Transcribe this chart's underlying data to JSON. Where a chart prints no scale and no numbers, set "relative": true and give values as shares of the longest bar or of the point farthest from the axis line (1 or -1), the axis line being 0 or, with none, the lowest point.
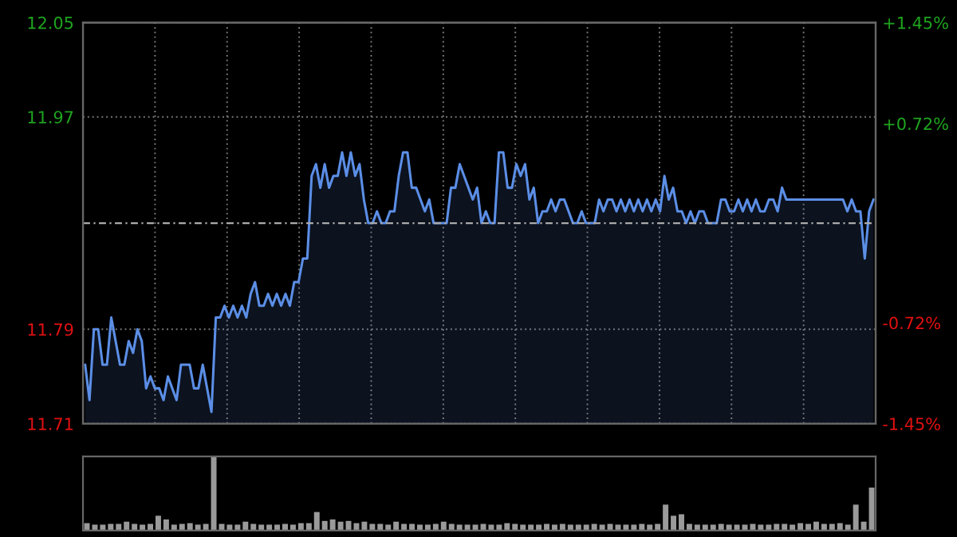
{
  "chart_data": [
    {
      "type": "area",
      "categories": [
        null,
        null,
        null,
        null,
        null,
        null,
        null,
        null,
        null,
        null,
        null,
        null,
        null,
        null,
        null,
        null,
        null,
        null,
        null,
        null,
        null,
        null,
        null,
        null,
        null,
        null,
        null,
        null,
        null,
        null,
        null,
        null,
        null,
        null,
        null,
        null,
        null,
        null,
        null,
        null,
        null,
        null,
        null,
        null,
        null,
        null,
        null,
        null,
        null,
        null,
        null,
        null,
        null,
        null,
        null,
        null,
        null,
        null,
        null,
        null,
        null,
        null,
        null,
        null,
        null,
        null,
        null,
        null,
        null,
        null,
        null,
        null,
        null,
        null,
        null,
        null,
        null,
        null,
        null,
        null,
        null,
        null,
        null,
        null,
        null,
        null,
        null,
        null,
        null,
        null,
        null,
        null,
        null,
        null,
        null,
        null,
        null,
        null,
        null,
        null,
        null,
        null,
        null,
        null,
        null,
        null,
        null,
        null,
        null,
        null,
        null,
        null,
        null,
        null,
        null,
        null,
        null,
        null,
        null,
        null,
        null,
        null,
        null,
        null,
        null,
        null,
        null,
        null,
        null,
        null,
        null,
        null,
        null,
        null,
        null,
        null,
        null,
        null,
        null,
        null,
        null,
        null,
        null,
        null,
        null,
        null,
        null,
        null,
        null,
        null,
        null,
        null,
        null,
        null,
        null,
        null,
        null,
        null,
        null,
        null,
        null,
        null,
        null,
        null,
        null,
        null,
        null,
        null,
        null,
        null,
        null,
        null,
        null,
        null,
        null,
        null,
        null,
        null,
        null,
        null,
        null,
        null
      ],
      "series": [
        {
          "color": "#5b8ee6",
          "values": [
            11.76,
            11.73,
            11.79,
            11.79,
            11.76,
            11.76,
            11.8,
            11.78,
            11.76,
            11.76,
            11.78,
            11.77,
            11.79,
            11.78,
            11.74,
            11.75,
            11.74,
            11.74,
            11.73,
            11.75,
            11.74,
            11.73,
            11.76,
            11.76,
            11.76,
            11.74,
            11.74,
            11.76,
            11.74,
            11.72,
            11.8,
            11.8,
            11.81,
            11.8,
            11.81,
            11.8,
            11.81,
            11.8,
            11.82,
            11.83,
            11.81,
            11.81,
            11.82,
            11.81,
            11.82,
            11.81,
            11.82,
            11.81,
            11.83,
            11.83,
            11.85,
            11.85,
            11.92,
            11.93,
            11.91,
            11.93,
            11.91,
            11.92,
            11.92,
            11.94,
            11.92,
            11.94,
            11.92,
            11.93,
            11.9,
            11.88,
            11.88,
            11.89,
            11.88,
            11.88,
            11.89,
            11.89,
            11.92,
            11.94,
            11.94,
            11.91,
            11.91,
            11.9,
            11.89,
            11.9,
            11.88,
            11.88,
            11.88,
            11.88,
            11.91,
            11.91,
            11.93,
            11.92,
            11.91,
            11.9,
            11.91,
            11.88,
            11.89,
            11.88,
            11.88,
            11.94,
            11.94,
            11.91,
            11.91,
            11.93,
            11.92,
            11.93,
            11.9,
            11.91,
            11.88,
            11.89,
            11.89,
            11.9,
            11.89,
            11.9,
            11.9,
            11.89,
            11.88,
            11.88,
            11.89,
            11.88,
            11.88,
            11.88,
            11.9,
            11.89,
            11.9,
            11.9,
            11.89,
            11.9,
            11.89,
            11.9,
            11.89,
            11.9,
            11.89,
            11.9,
            11.89,
            11.9,
            11.89,
            11.92,
            11.9,
            11.91,
            11.89,
            11.89,
            11.88,
            11.89,
            11.88,
            11.89,
            11.89,
            11.88,
            11.88,
            11.88,
            11.9,
            11.9,
            11.89,
            11.89,
            11.9,
            11.89,
            11.9,
            11.89,
            11.9,
            11.89,
            11.89,
            11.9,
            11.9,
            11.89,
            11.91,
            11.9,
            11.9,
            11.9,
            11.9,
            11.9,
            11.9,
            11.9,
            11.9,
            11.9,
            11.9,
            11.9,
            11.9,
            11.9,
            11.9,
            11.89,
            11.9,
            11.89,
            11.89,
            11.85,
            11.89,
            11.9
          ]
        }
      ],
      "ylim": [
        11.71,
        12.05
      ],
      "yticks": [
        11.71,
        11.79,
        11.97,
        12.05
      ],
      "y2lim": [
        -1.45,
        1.45
      ],
      "y2ticks": [
        {
          "value": -1.45,
          "label": "-1.45%"
        },
        {
          "value": -0.72,
          "label": "-0.72%"
        },
        {
          "value": 0.72,
          "label": "+0.72%"
        },
        {
          "value": 1.45,
          "label": "+1.45%"
        }
      ],
      "ref_lines": [
        {
          "axis": "y",
          "value": 11.88,
          "line_style": "dashed"
        }
      ],
      "grid": true,
      "tick_labels": "y"
    },
    {
      "type": "bar",
      "relative": true,
      "tick_labels": false,
      "color": "#9a9a9a",
      "categories": [
        null,
        null,
        null,
        null,
        null,
        null,
        null,
        null,
        null,
        null,
        null,
        null,
        null,
        null,
        null,
        null,
        null,
        null,
        null,
        null,
        null,
        null,
        null,
        null,
        null,
        null,
        null,
        null,
        null,
        null,
        null,
        null,
        null,
        null,
        null,
        null,
        null,
        null,
        null,
        null,
        null,
        null,
        null,
        null,
        null,
        null,
        null,
        null,
        null,
        null,
        null,
        null,
        null,
        null,
        null,
        null,
        null,
        null,
        null,
        null,
        null,
        null,
        null,
        null,
        null,
        null,
        null,
        null,
        null,
        null,
        null,
        null,
        null,
        null,
        null,
        null,
        null,
        null,
        null,
        null,
        null,
        null,
        null,
        null,
        null,
        null,
        null,
        null,
        null,
        null,
        null,
        null,
        null,
        null,
        null,
        null,
        null,
        null,
        null,
        null
      ],
      "values": [
        0.1,
        0.08,
        0.08,
        0.09,
        0.09,
        0.12,
        0.09,
        0.08,
        0.09,
        0.2,
        0.15,
        0.08,
        0.09,
        0.1,
        0.08,
        0.09,
        1,
        0.09,
        0.08,
        0.08,
        0.12,
        0.09,
        0.08,
        0.08,
        0.08,
        0.09,
        0.08,
        0.1,
        0.1,
        0.25,
        0.13,
        0.15,
        0.12,
        0.13,
        0.1,
        0.12,
        0.09,
        0.09,
        0.08,
        0.12,
        0.09,
        0.09,
        0.08,
        0.08,
        0.09,
        0.12,
        0.09,
        0.08,
        0.08,
        0.08,
        0.09,
        0.08,
        0.08,
        0.1,
        0.09,
        0.08,
        0.08,
        0.08,
        0.09,
        0.08,
        0.09,
        0.08,
        0.08,
        0.08,
        0.09,
        0.08,
        0.09,
        0.08,
        0.08,
        0.08,
        0.09,
        0.08,
        0.09,
        0.35,
        0.2,
        0.22,
        0.09,
        0.08,
        0.08,
        0.08,
        0.09,
        0.08,
        0.08,
        0.08,
        0.09,
        0.08,
        0.08,
        0.09,
        0.09,
        0.08,
        0.1,
        0.09,
        0.12,
        0.09,
        0.09,
        0.1,
        0.08,
        0.35,
        0.12,
        0.58
      ]
    }
  ]
}
